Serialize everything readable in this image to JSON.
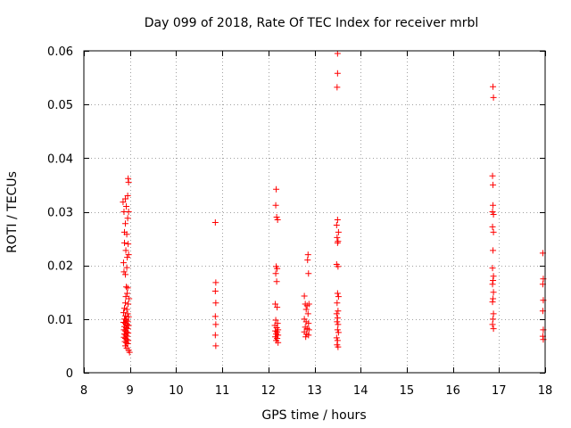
{
  "chart_data": {
    "type": "scatter",
    "title": "Day 099 of 2018, Rate Of TEC Index for receiver mrbl",
    "xlabel": "GPS time / hours",
    "ylabel": "ROTI / TECUs",
    "xlim": [
      8,
      18
    ],
    "ylim": [
      0,
      0.06
    ],
    "grid": true,
    "xticks": [
      8,
      9,
      10,
      11,
      12,
      13,
      14,
      15,
      16,
      17,
      18
    ],
    "xtick_labels": [
      "8",
      "9",
      "10",
      "11",
      "12",
      "13",
      "14",
      "15",
      "16",
      "17",
      "18"
    ],
    "yticks": [
      0,
      0.01,
      0.02,
      0.03,
      0.04,
      0.05,
      0.06
    ],
    "ytick_labels": [
      "0",
      "0.01",
      "0.02",
      "0.03",
      "0.04",
      "0.05",
      "0.06"
    ],
    "marker": "+",
    "marker_color": "#ff0000",
    "series": [
      {
        "name": "ROTI",
        "points": [
          [
            8.85,
            0.0318
          ],
          [
            8.87,
            0.03
          ],
          [
            8.88,
            0.0262
          ],
          [
            8.88,
            0.0242
          ],
          [
            8.86,
            0.0205
          ],
          [
            8.87,
            0.0188
          ],
          [
            8.9,
            0.0324
          ],
          [
            8.92,
            0.031
          ],
          [
            8.9,
            0.0278
          ],
          [
            8.93,
            0.0258
          ],
          [
            8.91,
            0.0228
          ],
          [
            8.94,
            0.0215
          ],
          [
            8.96,
            0.0362
          ],
          [
            8.97,
            0.0355
          ],
          [
            8.95,
            0.033
          ],
          [
            8.97,
            0.03
          ],
          [
            8.95,
            0.0288
          ],
          [
            8.96,
            0.024
          ],
          [
            8.97,
            0.022
          ],
          [
            8.93,
            0.0196
          ],
          [
            8.9,
            0.0183
          ],
          [
            8.92,
            0.016
          ],
          [
            8.95,
            0.0158
          ],
          [
            8.94,
            0.0148
          ],
          [
            8.91,
            0.0142
          ],
          [
            8.98,
            0.0138
          ],
          [
            8.9,
            0.013
          ],
          [
            8.96,
            0.0128
          ],
          [
            8.88,
            0.012
          ],
          [
            8.93,
            0.0118
          ],
          [
            8.86,
            0.0112
          ],
          [
            8.95,
            0.011
          ],
          [
            8.9,
            0.0106
          ],
          [
            8.97,
            0.0104
          ],
          [
            8.88,
            0.01
          ],
          [
            8.92,
            0.0098
          ],
          [
            8.95,
            0.0096
          ],
          [
            8.86,
            0.0094
          ],
          [
            8.9,
            0.0092
          ],
          [
            8.94,
            0.009
          ],
          [
            8.97,
            0.0088
          ],
          [
            8.88,
            0.0086
          ],
          [
            8.92,
            0.0084
          ],
          [
            8.95,
            0.0082
          ],
          [
            8.87,
            0.008
          ],
          [
            8.9,
            0.0078
          ],
          [
            8.93,
            0.0076
          ],
          [
            8.96,
            0.0074
          ],
          [
            8.88,
            0.0072
          ],
          [
            8.91,
            0.007
          ],
          [
            8.94,
            0.0068
          ],
          [
            8.87,
            0.0066
          ],
          [
            8.9,
            0.0064
          ],
          [
            8.93,
            0.0062
          ],
          [
            8.96,
            0.006
          ],
          [
            8.89,
            0.0058
          ],
          [
            8.92,
            0.0056
          ],
          [
            8.95,
            0.0054
          ],
          [
            8.9,
            0.005
          ],
          [
            8.93,
            0.0046
          ],
          [
            8.97,
            0.0042
          ],
          [
            8.99,
            0.0038
          ],
          [
            10.85,
            0.028
          ],
          [
            10.86,
            0.0168
          ],
          [
            10.85,
            0.0152
          ],
          [
            10.86,
            0.013
          ],
          [
            10.85,
            0.0105
          ],
          [
            10.86,
            0.009
          ],
          [
            10.85,
            0.007
          ],
          [
            10.86,
            0.005
          ],
          [
            12.17,
            0.0342
          ],
          [
            12.16,
            0.0312
          ],
          [
            12.18,
            0.029
          ],
          [
            12.2,
            0.0285
          ],
          [
            12.17,
            0.0198
          ],
          [
            12.19,
            0.0194
          ],
          [
            12.16,
            0.0185
          ],
          [
            12.18,
            0.017
          ],
          [
            12.15,
            0.0128
          ],
          [
            12.19,
            0.0122
          ],
          [
            12.16,
            0.0098
          ],
          [
            12.2,
            0.0092
          ],
          [
            12.14,
            0.0088
          ],
          [
            12.18,
            0.0084
          ],
          [
            12.21,
            0.008
          ],
          [
            12.15,
            0.0078
          ],
          [
            12.19,
            0.0076
          ],
          [
            12.17,
            0.0072
          ],
          [
            12.21,
            0.007
          ],
          [
            12.15,
            0.0067
          ],
          [
            12.19,
            0.0064
          ],
          [
            12.17,
            0.006
          ],
          [
            12.21,
            0.0056
          ],
          [
            12.86,
            0.022
          ],
          [
            12.85,
            0.021
          ],
          [
            12.87,
            0.0185
          ],
          [
            12.78,
            0.0143
          ],
          [
            12.8,
            0.0128
          ],
          [
            12.84,
            0.0125
          ],
          [
            12.88,
            0.0128
          ],
          [
            12.82,
            0.0118
          ],
          [
            12.86,
            0.011
          ],
          [
            12.78,
            0.01
          ],
          [
            12.82,
            0.0095
          ],
          [
            12.87,
            0.0092
          ],
          [
            12.8,
            0.0085
          ],
          [
            12.84,
            0.0082
          ],
          [
            12.88,
            0.008
          ],
          [
            12.78,
            0.0076
          ],
          [
            12.83,
            0.0072
          ],
          [
            12.87,
            0.007
          ],
          [
            12.81,
            0.0067
          ],
          [
            13.5,
            0.0595
          ],
          [
            13.5,
            0.0558
          ],
          [
            13.49,
            0.0532
          ],
          [
            13.5,
            0.0285
          ],
          [
            13.48,
            0.0275
          ],
          [
            13.52,
            0.0262
          ],
          [
            13.49,
            0.0252
          ],
          [
            13.51,
            0.0245
          ],
          [
            13.5,
            0.0242
          ],
          [
            13.48,
            0.0202
          ],
          [
            13.51,
            0.0198
          ],
          [
            13.5,
            0.0148
          ],
          [
            13.52,
            0.0142
          ],
          [
            13.49,
            0.013
          ],
          [
            13.51,
            0.0115
          ],
          [
            13.48,
            0.011
          ],
          [
            13.5,
            0.0102
          ],
          [
            13.49,
            0.0095
          ],
          [
            13.51,
            0.009
          ],
          [
            13.5,
            0.008
          ],
          [
            13.52,
            0.0075
          ],
          [
            13.48,
            0.0065
          ],
          [
            13.5,
            0.006
          ],
          [
            13.49,
            0.0052
          ],
          [
            13.51,
            0.0048
          ],
          [
            16.87,
            0.0533
          ],
          [
            16.88,
            0.0513
          ],
          [
            16.86,
            0.0367
          ],
          [
            16.87,
            0.035
          ],
          [
            16.87,
            0.0312
          ],
          [
            16.86,
            0.03
          ],
          [
            16.88,
            0.0295
          ],
          [
            16.86,
            0.0272
          ],
          [
            16.88,
            0.0262
          ],
          [
            16.87,
            0.0228
          ],
          [
            16.86,
            0.0195
          ],
          [
            16.88,
            0.018
          ],
          [
            16.87,
            0.0172
          ],
          [
            16.86,
            0.0165
          ],
          [
            16.88,
            0.015
          ],
          [
            16.87,
            0.0138
          ],
          [
            16.86,
            0.0132
          ],
          [
            16.88,
            0.011
          ],
          [
            16.87,
            0.01
          ],
          [
            16.86,
            0.009
          ],
          [
            16.88,
            0.0082
          ],
          [
            17.95,
            0.0223
          ],
          [
            17.96,
            0.0175
          ],
          [
            17.95,
            0.0165
          ],
          [
            17.96,
            0.0135
          ],
          [
            17.95,
            0.0115
          ],
          [
            17.96,
            0.008
          ],
          [
            17.95,
            0.0068
          ],
          [
            17.96,
            0.0062
          ]
        ]
      }
    ]
  }
}
